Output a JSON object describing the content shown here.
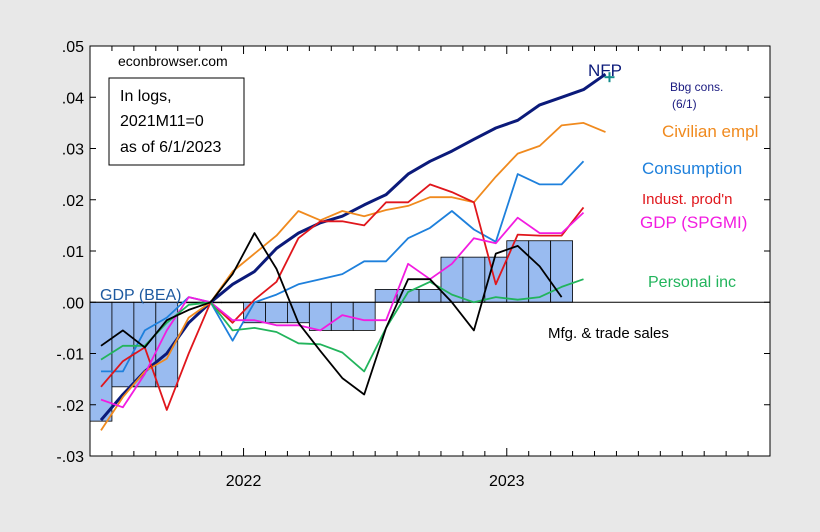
{
  "chart_data": {
    "type": "line",
    "site": "econbrowser.com",
    "note": [
      "In logs,",
      "2021M11=0",
      "as of 6/1/2023"
    ],
    "ylim": [
      -0.03,
      0.05
    ],
    "y_ticks": [
      ".05",
      ".04",
      ".03",
      ".02",
      ".01",
      ".00",
      "-.01",
      "-.02",
      "-.03"
    ],
    "x_ticks": [
      "2022",
      "2023"
    ],
    "x_range": [
      "2021-06",
      "2023-12"
    ],
    "gdp_bea": {
      "name": "GDP (BEA)",
      "color": "#99bbf0",
      "quarters": [
        "2021Q2",
        "2021Q3",
        "2021Q4",
        "2022Q1",
        "2022Q2",
        "2022Q3",
        "2022Q4",
        "2023Q1"
      ],
      "values": [
        -0.0232,
        -0.0165,
        -0.0001,
        -0.004,
        -0.0055,
        0.0025,
        0.0088,
        0.012
      ]
    },
    "series": [
      {
        "name": "NFP",
        "color": "#0b1a7a",
        "x": [
          "2021-06",
          "2021-07",
          "2021-08",
          "2021-09",
          "2021-10",
          "2021-11",
          "2021-12",
          "2022-01",
          "2022-02",
          "2022-03",
          "2022-04",
          "2022-05",
          "2022-06",
          "2022-07",
          "2022-08",
          "2022-09",
          "2022-10",
          "2022-11",
          "2022-12",
          "2023-01",
          "2023-02",
          "2023-03",
          "2023-04",
          "2023-05"
        ],
        "values": [
          -0.023,
          -0.018,
          -0.0135,
          -0.01,
          -0.004,
          0.0,
          0.0035,
          0.006,
          0.0105,
          0.0135,
          0.0155,
          0.0168,
          0.019,
          0.021,
          0.025,
          0.0275,
          0.0295,
          0.0318,
          0.034,
          0.0355,
          0.0385,
          0.04,
          0.0415,
          0.0445
        ]
      },
      {
        "name": "Civilian empl",
        "color": "#f08a1e",
        "x": [
          "2021-06",
          "2021-07",
          "2021-08",
          "2021-09",
          "2021-10",
          "2021-11",
          "2021-12",
          "2022-01",
          "2022-02",
          "2022-03",
          "2022-04",
          "2022-05",
          "2022-06",
          "2022-07",
          "2022-08",
          "2022-09",
          "2022-10",
          "2022-11",
          "2022-12",
          "2023-01",
          "2023-02",
          "2023-03",
          "2023-04",
          "2023-05"
        ],
        "values": [
          -0.025,
          -0.0185,
          -0.0135,
          -0.011,
          -0.003,
          0.0,
          0.006,
          0.0095,
          0.013,
          0.0178,
          0.016,
          0.0178,
          0.0168,
          0.018,
          0.0188,
          0.0205,
          0.0205,
          0.0195,
          0.0245,
          0.029,
          0.0305,
          0.0345,
          0.035,
          0.0332
        ]
      },
      {
        "name": "Consumption",
        "color": "#1e80dc",
        "x": [
          "2021-06",
          "2021-07",
          "2021-08",
          "2021-09",
          "2021-10",
          "2021-11",
          "2021-12",
          "2022-01",
          "2022-02",
          "2022-03",
          "2022-04",
          "2022-05",
          "2022-06",
          "2022-07",
          "2022-08",
          "2022-09",
          "2022-10",
          "2022-11",
          "2022-12",
          "2023-01",
          "2023-02",
          "2023-03",
          "2023-04"
        ],
        "values": [
          -0.0135,
          -0.0135,
          -0.0055,
          -0.003,
          0.001,
          0.0,
          -0.0075,
          0.0,
          0.0015,
          0.0035,
          0.0045,
          0.0055,
          0.008,
          0.008,
          0.0125,
          0.0145,
          0.0178,
          0.0142,
          0.0118,
          0.025,
          0.023,
          0.023,
          0.0275
        ]
      },
      {
        "name": "Indust. prod'n",
        "color": "#e0161c",
        "x": [
          "2021-06",
          "2021-07",
          "2021-08",
          "2021-09",
          "2021-10",
          "2021-11",
          "2021-12",
          "2022-01",
          "2022-02",
          "2022-03",
          "2022-04",
          "2022-05",
          "2022-06",
          "2022-07",
          "2022-08",
          "2022-09",
          "2022-10",
          "2022-11",
          "2022-12",
          "2023-01",
          "2023-02",
          "2023-03",
          "2023-04"
        ],
        "values": [
          -0.0165,
          -0.0115,
          -0.0088,
          -0.021,
          -0.01,
          0.0,
          -0.004,
          0.0005,
          0.004,
          0.0125,
          0.0158,
          0.0158,
          0.015,
          0.0195,
          0.0195,
          0.023,
          0.0215,
          0.0195,
          0.0035,
          0.0132,
          0.013,
          0.013,
          0.0185
        ]
      },
      {
        "name": "GDP (SPGMI)",
        "color": "#f21ce0",
        "x": [
          "2021-06",
          "2021-07",
          "2021-08",
          "2021-09",
          "2021-10",
          "2021-11",
          "2021-12",
          "2022-01",
          "2022-02",
          "2022-03",
          "2022-04",
          "2022-05",
          "2022-06",
          "2022-07",
          "2022-08",
          "2022-09",
          "2022-10",
          "2022-11",
          "2022-12",
          "2023-01",
          "2023-02",
          "2023-03",
          "2023-04"
        ],
        "values": [
          -0.019,
          -0.0205,
          -0.014,
          -0.0055,
          0.001,
          0.0,
          -0.0035,
          -0.0035,
          -0.0045,
          -0.0045,
          -0.0055,
          -0.0025,
          -0.0035,
          -0.0035,
          0.0075,
          0.0045,
          0.0075,
          0.0125,
          0.0115,
          0.0165,
          0.0135,
          0.0135,
          0.0175
        ]
      },
      {
        "name": "Personal inc",
        "color": "#22b45c",
        "x": [
          "2021-06",
          "2021-07",
          "2021-08",
          "2021-09",
          "2021-10",
          "2021-11",
          "2021-12",
          "2022-01",
          "2022-02",
          "2022-03",
          "2022-04",
          "2022-05",
          "2022-06",
          "2022-07",
          "2022-08",
          "2022-09",
          "2022-10",
          "2022-11",
          "2022-12",
          "2023-01",
          "2023-02",
          "2023-03",
          "2023-04"
        ],
        "values": [
          -0.0112,
          -0.0085,
          -0.0085,
          -0.004,
          -0.0005,
          0.0,
          -0.0055,
          -0.005,
          -0.0058,
          -0.008,
          -0.0082,
          -0.0098,
          -0.0135,
          -0.005,
          0.002,
          0.004,
          0.0015,
          0.0,
          0.001,
          0.0005,
          0.001,
          0.003,
          0.0045
        ]
      },
      {
        "name": "Mfg. & trade sales",
        "color": "#000000",
        "x": [
          "2021-06",
          "2021-07",
          "2021-08",
          "2021-09",
          "2021-10",
          "2021-11",
          "2021-12",
          "2022-01",
          "2022-02",
          "2022-03",
          "2022-04",
          "2022-05",
          "2022-06",
          "2022-07",
          "2022-08",
          "2022-09",
          "2022-10",
          "2022-11",
          "2022-12",
          "2023-01",
          "2023-02",
          "2023-03"
        ],
        "values": [
          -0.0085,
          -0.0055,
          -0.0088,
          -0.0035,
          -0.0015,
          0.0,
          0.0055,
          0.0135,
          0.0065,
          -0.004,
          -0.0095,
          -0.0148,
          -0.018,
          -0.005,
          0.0045,
          0.0045,
          0.0,
          -0.0055,
          0.0095,
          0.011,
          0.007,
          0.001
        ]
      }
    ],
    "bbg_consensus": {
      "name": "Bbg cons.",
      "sub": "(6/1)",
      "color": "#138c8c",
      "x": "2023-05",
      "value": 0.0445
    },
    "legend_placement": "inline labels next to lines",
    "grid": false
  }
}
